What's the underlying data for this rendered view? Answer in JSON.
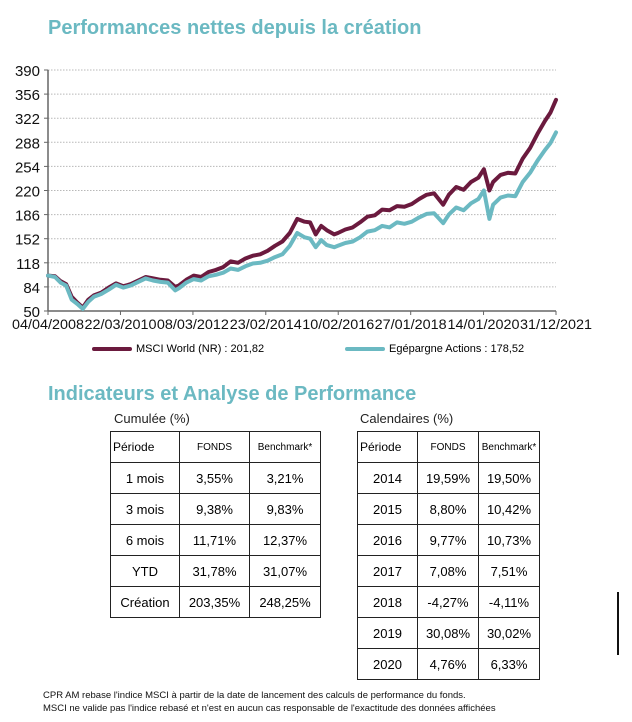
{
  "header": {
    "title": "Performances nettes depuis la création"
  },
  "section2": {
    "title": "Indicateurs  et Analyse de Performance"
  },
  "colors": {
    "title": "#6bb9c2",
    "msci": "#6b1a3e",
    "fund": "#6bb9c2"
  },
  "chart_data": {
    "type": "line",
    "title": "Performances nettes depuis la création",
    "xlabel": "",
    "ylabel": "",
    "ylim": [
      50,
      390
    ],
    "yticks": [
      "390",
      "356",
      "322",
      "288",
      "254",
      "220",
      "186",
      "152",
      "118",
      "84",
      "50"
    ],
    "ytick_values": [
      390,
      356,
      322,
      288,
      254,
      220,
      186,
      152,
      118,
      84,
      50
    ],
    "xticks": [
      "04/04/2008",
      "22/03/2010",
      "08/03/2012",
      "23/02/2014",
      "10/02/2016",
      "27/01/2018",
      "14/01/2020",
      "31/12/2021"
    ],
    "xtick_values": [
      2008.26,
      2010.22,
      2012.18,
      2014.15,
      2016.11,
      2018.07,
      2020.04,
      2022.0
    ],
    "xlim": [
      2008.26,
      2022.0
    ],
    "grid": "horizontal-dotted",
    "legend_position": "bottom",
    "legend": [
      "MSCI World (NR) : 201,82",
      "Egépargne Actions  : 178,52"
    ],
    "x": [
      2008.26,
      2008.45,
      2008.6,
      2008.75,
      2008.9,
      2009.05,
      2009.2,
      2009.35,
      2009.5,
      2009.7,
      2009.9,
      2010.1,
      2010.3,
      2010.5,
      2010.7,
      2010.9,
      2011.1,
      2011.3,
      2011.5,
      2011.7,
      2011.8,
      2012.0,
      2012.2,
      2012.4,
      2012.6,
      2012.8,
      2013.0,
      2013.2,
      2013.4,
      2013.6,
      2013.8,
      2014.0,
      2014.2,
      2014.4,
      2014.6,
      2014.8,
      2015.0,
      2015.2,
      2015.35,
      2015.5,
      2015.65,
      2015.8,
      2016.0,
      2016.1,
      2016.3,
      2016.5,
      2016.7,
      2016.9,
      2017.1,
      2017.3,
      2017.5,
      2017.7,
      2017.9,
      2018.1,
      2018.3,
      2018.5,
      2018.7,
      2018.95,
      2019.1,
      2019.3,
      2019.5,
      2019.7,
      2019.9,
      2020.05,
      2020.2,
      2020.3,
      2020.5,
      2020.7,
      2020.9,
      2021.1,
      2021.3,
      2021.5,
      2021.7,
      2021.85,
      2022.0
    ],
    "series": [
      {
        "name": "MSCI World (NR)",
        "values": [
          100,
          99,
          92,
          88,
          70,
          62,
          55,
          66,
          72,
          76,
          83,
          89,
          85,
          88,
          93,
          98,
          96,
          94,
          93,
          84,
          86,
          94,
          100,
          98,
          105,
          108,
          112,
          120,
          118,
          124,
          128,
          130,
          135,
          142,
          148,
          160,
          180,
          176,
          175,
          158,
          170,
          164,
          158,
          160,
          165,
          168,
          175,
          183,
          185,
          193,
          192,
          198,
          197,
          201,
          208,
          214,
          216,
          200,
          214,
          225,
          221,
          232,
          238,
          250,
          220,
          232,
          242,
          245,
          244,
          265,
          280,
          300,
          318,
          330,
          348
        ]
      },
      {
        "name": "Egépargne Actions",
        "values": [
          100,
          98,
          90,
          86,
          66,
          60,
          53,
          63,
          70,
          74,
          80,
          87,
          83,
          86,
          91,
          96,
          93,
          91,
          90,
          79,
          82,
          90,
          95,
          93,
          99,
          101,
          104,
          110,
          108,
          113,
          117,
          118,
          121,
          126,
          130,
          142,
          160,
          154,
          152,
          140,
          150,
          143,
          140,
          142,
          146,
          148,
          154,
          162,
          164,
          170,
          168,
          175,
          173,
          176,
          182,
          187,
          188,
          174,
          186,
          196,
          192,
          202,
          208,
          220,
          180,
          200,
          210,
          213,
          212,
          232,
          245,
          262,
          277,
          287,
          302
        ]
      }
    ]
  },
  "cumulee": {
    "caption": "Cumulée (%)",
    "headers": [
      "Période",
      "FONDS",
      "Benchmark*"
    ],
    "rows": [
      [
        "1 mois",
        "3,55%",
        "3,21%"
      ],
      [
        "3 mois",
        "9,38%",
        "9,83%"
      ],
      [
        "6 mois",
        "11,71%",
        "12,37%"
      ],
      [
        "YTD",
        "31,78%",
        "31,07%"
      ],
      [
        "Création",
        "203,35%",
        "248,25%"
      ]
    ]
  },
  "calendaires": {
    "caption": "Calendaires (%)",
    "headers": [
      "Période",
      "FONDS",
      "Benchmark*"
    ],
    "rows": [
      [
        "2014",
        "19,59%",
        "19,50%"
      ],
      [
        "2015",
        "8,80%",
        "10,42%"
      ],
      [
        "2016",
        "9,77%",
        "10,73%"
      ],
      [
        "2017",
        "7,08%",
        "7,51%"
      ],
      [
        "2018",
        "-4,27%",
        "-4,11%"
      ],
      [
        "2019",
        "30,08%",
        "30,02%"
      ],
      [
        "2020",
        "4,76%",
        "6,33%"
      ]
    ]
  },
  "footnote": {
    "line1": "CPR AM rebase l'indice MSCI à partir de la date de lancement des calculs de performance du fonds.",
    "line2": "MSCI ne valide pas l'indice rebasé et n'est en aucun cas responsable de l'exactitude des données affichées"
  }
}
